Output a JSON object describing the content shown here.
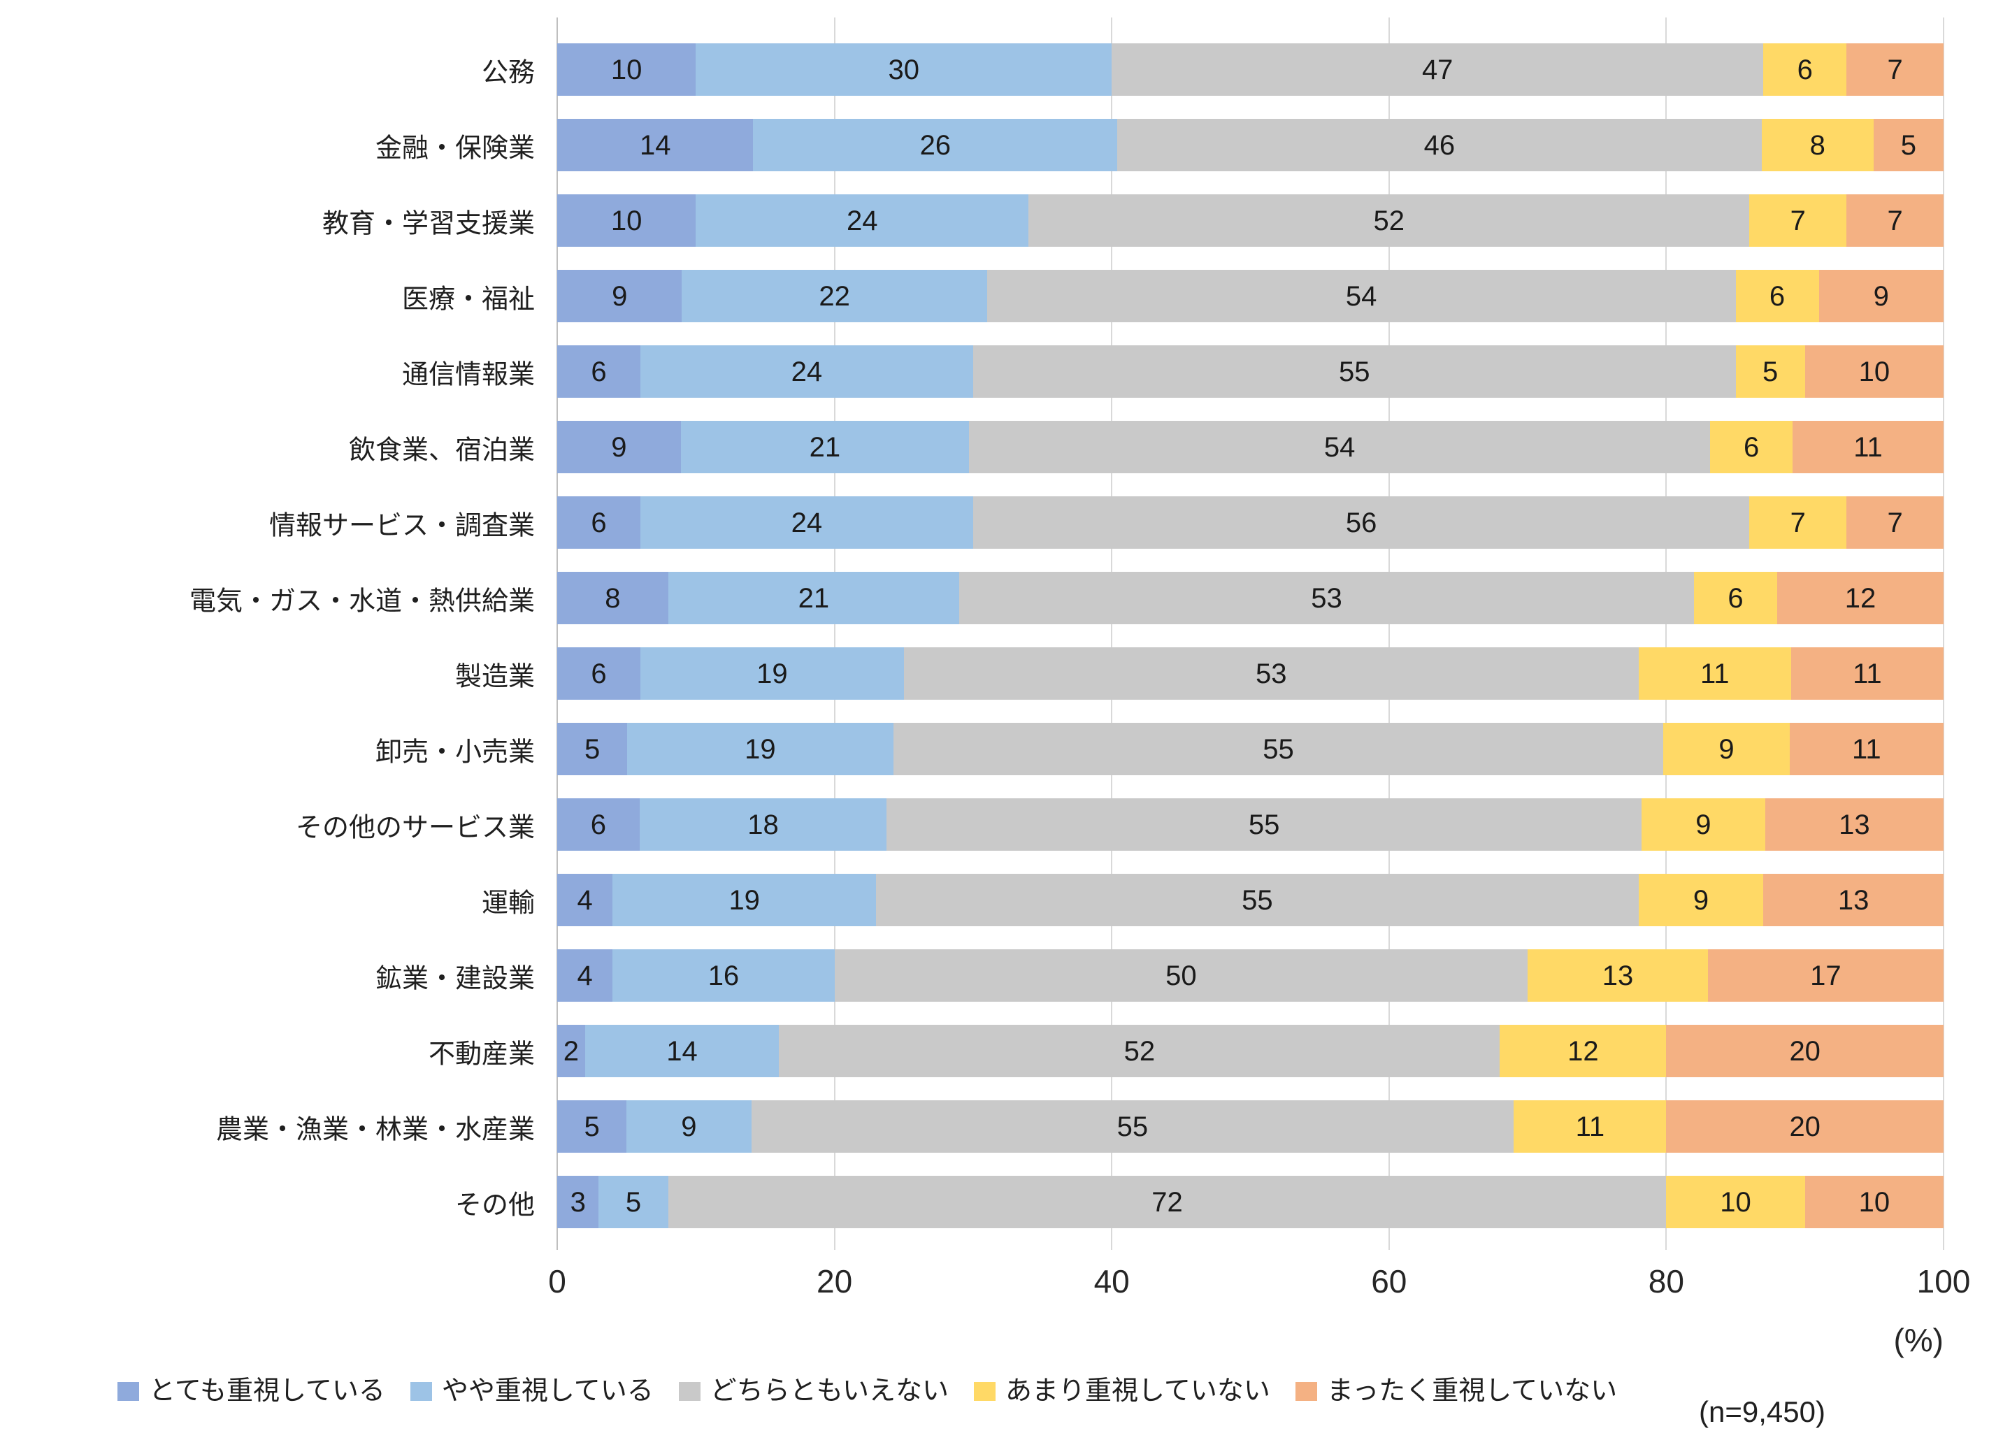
{
  "chart_data": {
    "type": "bar",
    "orientation": "horizontal",
    "stacked": true,
    "unit": "%",
    "grid": true,
    "legend_position": "bottom",
    "categories": [
      "公務",
      "金融・保険業",
      "教育・学習支援業",
      "医療・福祉",
      "通信情報業",
      "飲食業、宿泊業",
      "情報サービス・調査業",
      "電気・ガス・水道・熱供給業",
      "製造業",
      "卸売・小売業",
      "その他のサービス業",
      "運輸",
      "鉱業・建設業",
      "不動産業",
      "農業・漁業・林業・水産業",
      "その他"
    ],
    "series": [
      {
        "name": "とても重視している",
        "color": "#8FAADC",
        "values": [
          10,
          14,
          10,
          9,
          6,
          9,
          6,
          8,
          6,
          5,
          6,
          4,
          4,
          2,
          5,
          3
        ]
      },
      {
        "name": "やや重視している",
        "color": "#9DC3E6",
        "values": [
          30,
          26,
          24,
          22,
          24,
          21,
          24,
          21,
          19,
          19,
          18,
          19,
          16,
          14,
          9,
          5
        ]
      },
      {
        "name": "どちらともいえない",
        "color": "#C9C9C9",
        "values": [
          47,
          46,
          52,
          54,
          55,
          54,
          56,
          53,
          53,
          55,
          55,
          55,
          50,
          52,
          55,
          72
        ]
      },
      {
        "name": "あまり重視していない",
        "color": "#FFD966",
        "values": [
          6,
          8,
          7,
          6,
          5,
          6,
          7,
          6,
          11,
          9,
          9,
          9,
          13,
          12,
          11,
          10
        ]
      },
      {
        "name": "まったく重視していない",
        "color": "#F4B183",
        "values": [
          7,
          5,
          7,
          9,
          10,
          11,
          7,
          12,
          11,
          11,
          13,
          13,
          17,
          20,
          20,
          10
        ]
      }
    ],
    "x_axis": {
      "ticks": [
        0,
        20,
        40,
        60,
        80,
        100
      ],
      "range": [
        0,
        100
      ],
      "unit_label": "(%)"
    },
    "sample_size_label": "(n=9,450)"
  }
}
